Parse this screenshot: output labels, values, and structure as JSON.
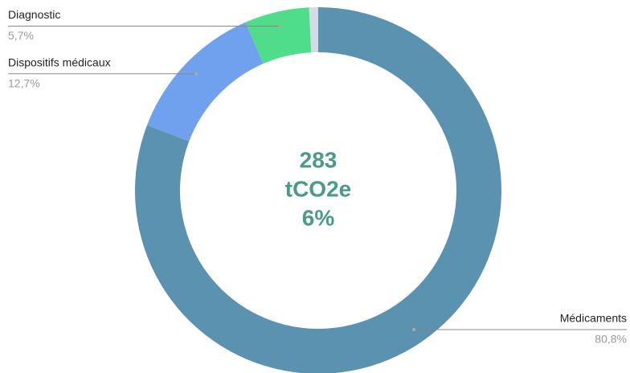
{
  "chart_data": {
    "type": "donut",
    "categories": [
      "Médicaments",
      "Dispositifs médicaux",
      "Diagnostic",
      null
    ],
    "values": [
      80.8,
      12.7,
      5.7,
      0.8
    ],
    "value_labels": [
      "80,8%",
      "12,7%",
      "5,7%",
      null
    ],
    "colors": [
      "#5a92b0",
      "#6fa1ee",
      "#4fdc8b",
      "#d3dbe6"
    ],
    "center_text": [
      "283",
      "tCO2e",
      "6%"
    ]
  }
}
